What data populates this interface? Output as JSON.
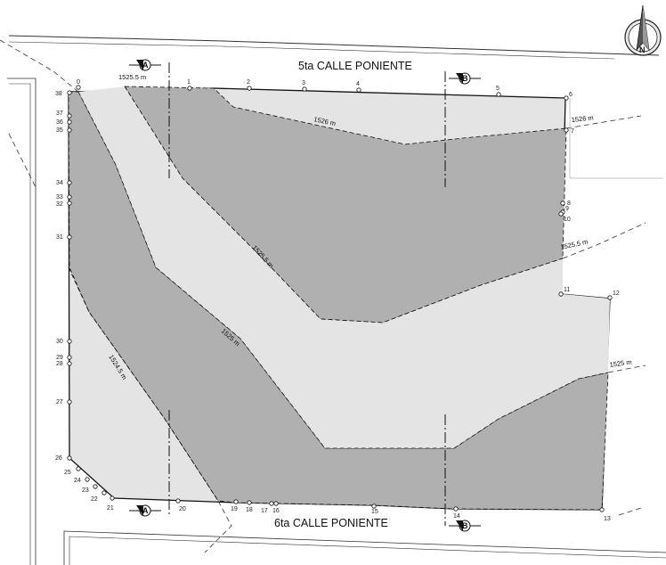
{
  "streets": {
    "north": "5ta CALLE PONIENTE",
    "south": "6ta CALLE PONIENTE"
  },
  "contour_labels": [
    "1525.5 m",
    "1526 m",
    "1526 m",
    "1525.5 m",
    "1525.5 m",
    "1525 m",
    "1525 m",
    "1524.5 m"
  ],
  "section_labels": [
    "A",
    "A",
    "B",
    "B"
  ],
  "compass": {
    "letter": "N"
  },
  "points": [
    "0",
    "1",
    "2",
    "3",
    "4",
    "5",
    "6",
    "7",
    "8",
    "9",
    "10",
    "11",
    "12",
    "13",
    "14",
    "15",
    "16",
    "17",
    "18",
    "19",
    "20",
    "21",
    "22",
    "23",
    "24",
    "25",
    "26",
    "27",
    "28",
    "29",
    "30",
    "31",
    "32",
    "33",
    "34",
    "35",
    "36",
    "37",
    "38"
  ],
  "colors": {
    "dark": "#b0b0b0",
    "light": "#e4e4e4",
    "line": "#111111"
  }
}
